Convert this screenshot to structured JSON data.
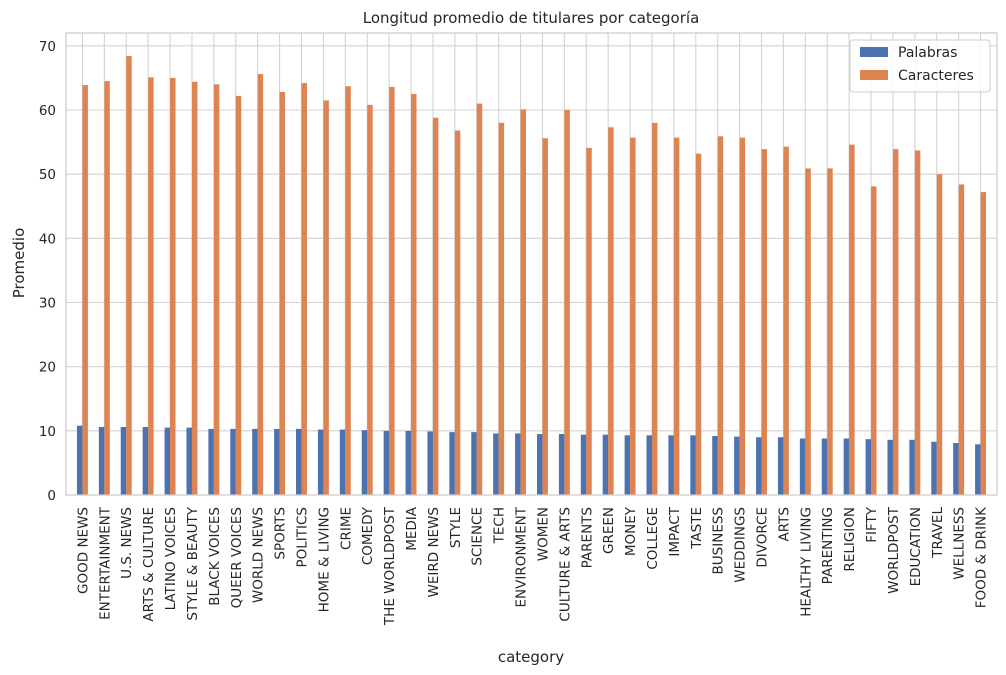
{
  "chart_data": {
    "type": "bar",
    "title": "Longitud promedio de titulares por categoría",
    "xlabel": "category",
    "ylabel": "Promedio",
    "ylim": [
      0,
      72
    ],
    "yticks": [
      0,
      10,
      20,
      30,
      40,
      50,
      60,
      70
    ],
    "ytick_labels": [
      "0",
      "10",
      "20",
      "30",
      "40",
      "50",
      "60",
      "70"
    ],
    "grid": true,
    "legend_position": "top-right",
    "categories": [
      "GOOD NEWS",
      "ENTERTAINMENT",
      "U.S. NEWS",
      "ARTS & CULTURE",
      "LATINO VOICES",
      "STYLE & BEAUTY",
      "BLACK VOICES",
      "QUEER VOICES",
      "WORLD NEWS",
      "SPORTS",
      "POLITICS",
      "HOME & LIVING",
      "CRIME",
      "COMEDY",
      "THE WORLDPOST",
      "MEDIA",
      "WEIRD NEWS",
      "STYLE",
      "SCIENCE",
      "TECH",
      "ENVIRONMENT",
      "WOMEN",
      "CULTURE & ARTS",
      "PARENTS",
      "GREEN",
      "MONEY",
      "COLLEGE",
      "IMPACT",
      "TASTE",
      "BUSINESS",
      "WEDDINGS",
      "DIVORCE",
      "ARTS",
      "HEALTHY LIVING",
      "PARENTING",
      "RELIGION",
      "FIFTY",
      "WORLDPOST",
      "EDUCATION",
      "TRAVEL",
      "WELLNESS",
      "FOOD & DRINK"
    ],
    "series": [
      {
        "name": "Palabras",
        "color": "#4c72b0",
        "values": [
          10.8,
          10.6,
          10.6,
          10.6,
          10.5,
          10.5,
          10.3,
          10.3,
          10.3,
          10.3,
          10.3,
          10.2,
          10.2,
          10.1,
          10.0,
          10.0,
          9.9,
          9.8,
          9.8,
          9.6,
          9.6,
          9.5,
          9.5,
          9.4,
          9.4,
          9.3,
          9.3,
          9.3,
          9.3,
          9.2,
          9.1,
          9.0,
          9.0,
          8.8,
          8.8,
          8.8,
          8.7,
          8.6,
          8.6,
          8.3,
          8.1,
          7.9
        ]
      },
      {
        "name": "Caracteres",
        "color": "#dd8452",
        "values": [
          63.9,
          64.5,
          68.4,
          65.1,
          65.0,
          64.4,
          64.0,
          62.2,
          65.6,
          62.8,
          64.2,
          61.5,
          63.7,
          60.8,
          63.6,
          62.5,
          58.8,
          56.8,
          61.0,
          58.0,
          60.1,
          55.6,
          60.0,
          54.1,
          57.3,
          55.7,
          58.0,
          55.7,
          53.2,
          55.9,
          55.7,
          53.9,
          54.3,
          50.9,
          50.9,
          54.6,
          48.1,
          53.9,
          53.7,
          50.0,
          48.4,
          47.2
        ]
      }
    ]
  }
}
